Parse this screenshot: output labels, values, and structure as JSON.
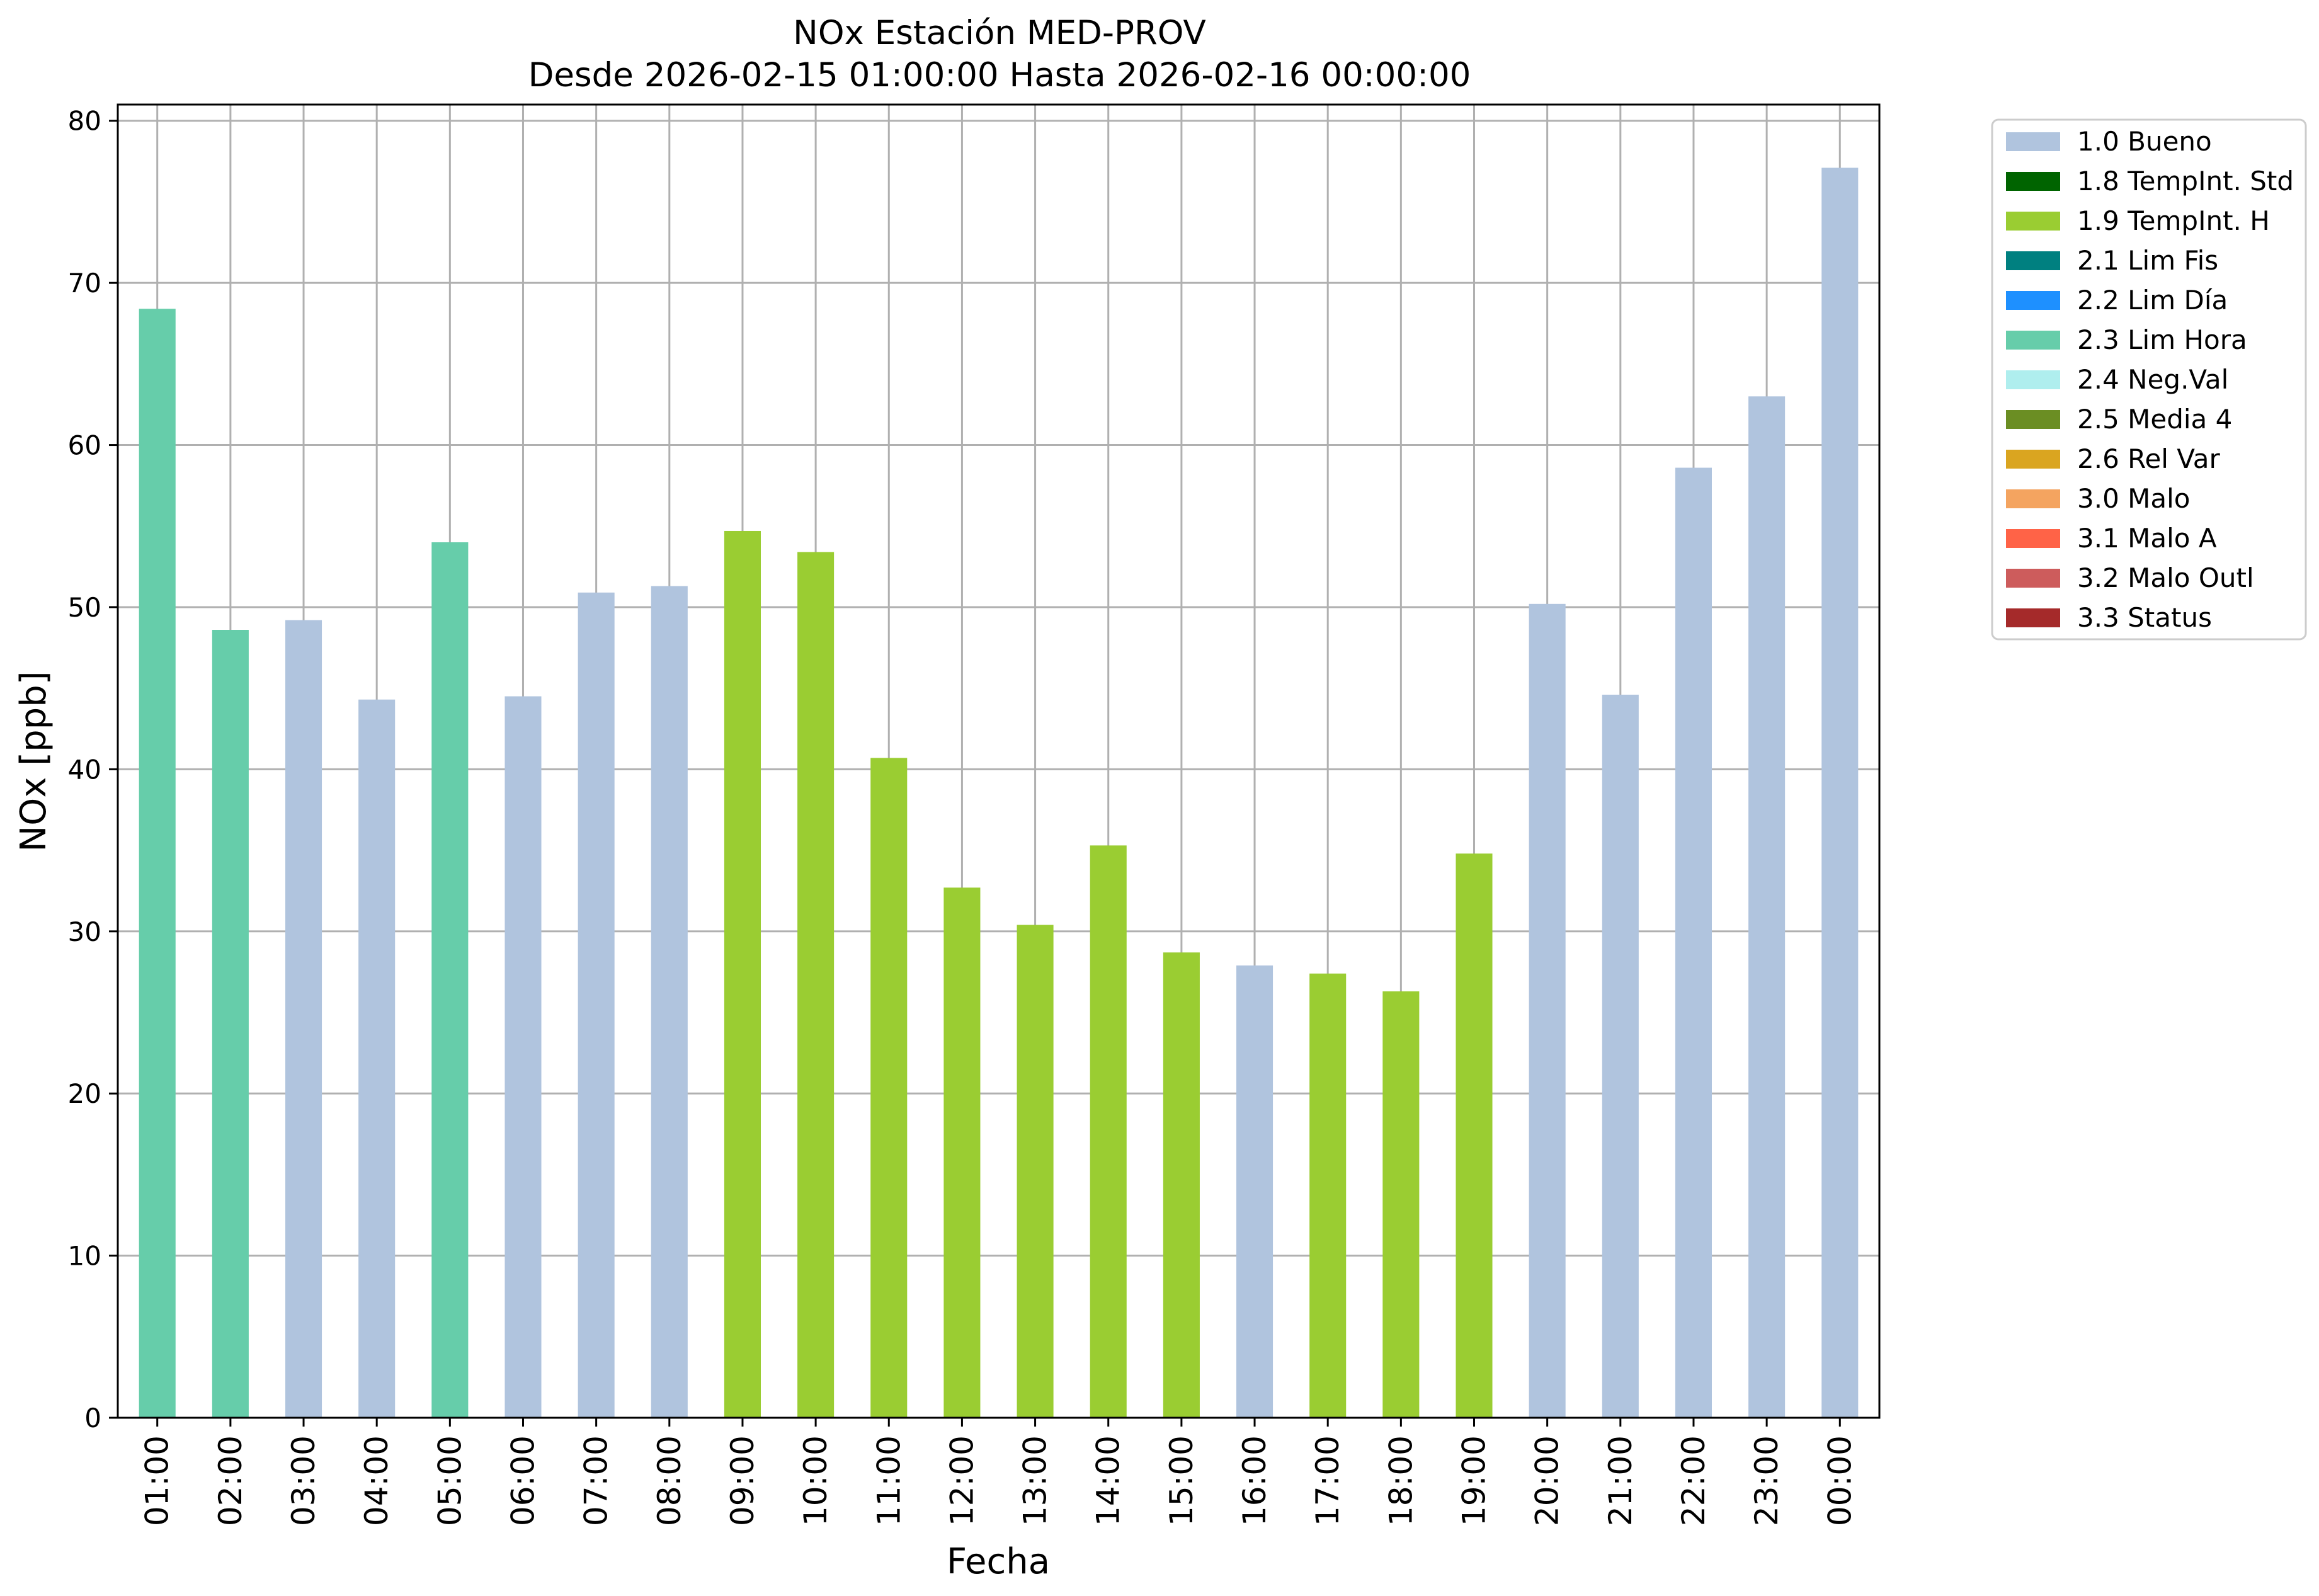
{
  "chart_data": {
    "type": "bar",
    "title": "NOx Estación MED-PROV",
    "subtitle": "Desde 2026-02-15 01:00:00 Hasta 2026-02-16 00:00:00",
    "xlabel": "Fecha",
    "ylabel": "NOx [ppb]",
    "ylim": [
      0,
      81
    ],
    "yticks": [
      "0",
      "10",
      "20",
      "30",
      "40",
      "50",
      "60",
      "70",
      "80"
    ],
    "grid": true,
    "legend_position": "outside-right-top",
    "categories": [
      "01:00",
      "02:00",
      "03:00",
      "04:00",
      "05:00",
      "06:00",
      "07:00",
      "08:00",
      "09:00",
      "10:00",
      "11:00",
      "12:00",
      "13:00",
      "14:00",
      "15:00",
      "16:00",
      "17:00",
      "18:00",
      "19:00",
      "20:00",
      "21:00",
      "22:00",
      "23:00",
      "00:00"
    ],
    "values": [
      68.4,
      48.6,
      49.2,
      44.3,
      54.0,
      44.5,
      50.9,
      51.3,
      54.7,
      53.4,
      40.7,
      32.7,
      30.4,
      35.3,
      28.7,
      27.9,
      27.4,
      26.3,
      34.8,
      50.2,
      44.6,
      58.6,
      63.0,
      77.1
    ],
    "bar_flags": [
      "2.3 Lim Hora",
      "2.3 Lim Hora",
      "1.0 Bueno",
      "1.0 Bueno",
      "2.3 Lim Hora",
      "1.0 Bueno",
      "1.0 Bueno",
      "1.0 Bueno",
      "1.9 TempInt. H",
      "1.9 TempInt. H",
      "1.9 TempInt. H",
      "1.9 TempInt. H",
      "1.9 TempInt. H",
      "1.9 TempInt. H",
      "1.9 TempInt. H",
      "1.0 Bueno",
      "1.9 TempInt. H",
      "1.9 TempInt. H",
      "1.9 TempInt. H",
      "1.0 Bueno",
      "1.0 Bueno",
      "1.0 Bueno",
      "1.0 Bueno",
      "1.0 Bueno"
    ],
    "legend": [
      {
        "label": "1.0 Bueno",
        "color": "#b0c4de"
      },
      {
        "label": "1.8 TempInt. Std",
        "color": "#006400"
      },
      {
        "label": "1.9 TempInt. H",
        "color": "#9acd32"
      },
      {
        "label": "2.1 Lim Fis",
        "color": "#008080"
      },
      {
        "label": "2.2 Lim Día",
        "color": "#1e90ff"
      },
      {
        "label": "2.3 Lim Hora",
        "color": "#66cdaa"
      },
      {
        "label": "2.4 Neg.Val",
        "color": "#afeeee"
      },
      {
        "label": "2.5 Media 4",
        "color": "#6b8e23"
      },
      {
        "label": "2.6 Rel Var",
        "color": "#daa520"
      },
      {
        "label": "3.0 Malo",
        "color": "#f4a460"
      },
      {
        "label": "3.1 Malo A",
        "color": "#ff6347"
      },
      {
        "label": "3.2 Malo Outl",
        "color": "#cd5c5c"
      },
      {
        "label": "3.3 Status",
        "color": "#a52a2a"
      }
    ]
  }
}
